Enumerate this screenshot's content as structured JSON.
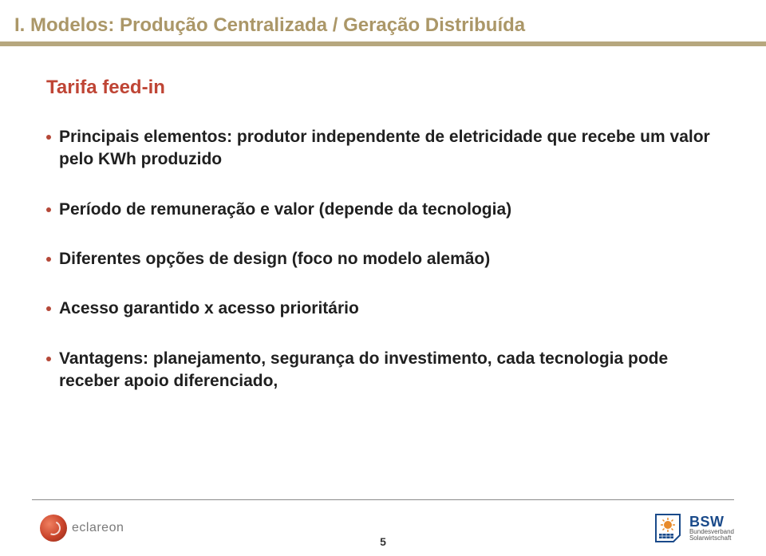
{
  "colors": {
    "title": "#ab9768",
    "accent": "#bf4535",
    "bullet_dot": "#b54838",
    "divider": "#b6a77e",
    "text": "#202020",
    "logo_right_blue": "#1a4a8a",
    "logo_right_orange": "#e88a2a"
  },
  "header": {
    "title": "I. Modelos: Produção Centralizada / Geração Distribuída"
  },
  "subtitle": "Tarifa feed-in",
  "bullets": [
    "Principais elementos: produtor independente de eletricidade que recebe um valor pelo KWh produzido",
    "Período de remuneração e valor (depende da tecnologia)",
    "Diferentes opções de design (foco no modelo alemão)",
    "Acesso garantido x acesso prioritário",
    "Vantagens: planejamento, segurança do investimento,  cada tecnologia pode receber apoio diferenciado,"
  ],
  "footer": {
    "left_logo_text": "eclareon",
    "right_logo_big": "BSW",
    "right_logo_small1": "Bundesverband",
    "right_logo_small2": "Solarwirtschaft",
    "page_number": "5"
  }
}
